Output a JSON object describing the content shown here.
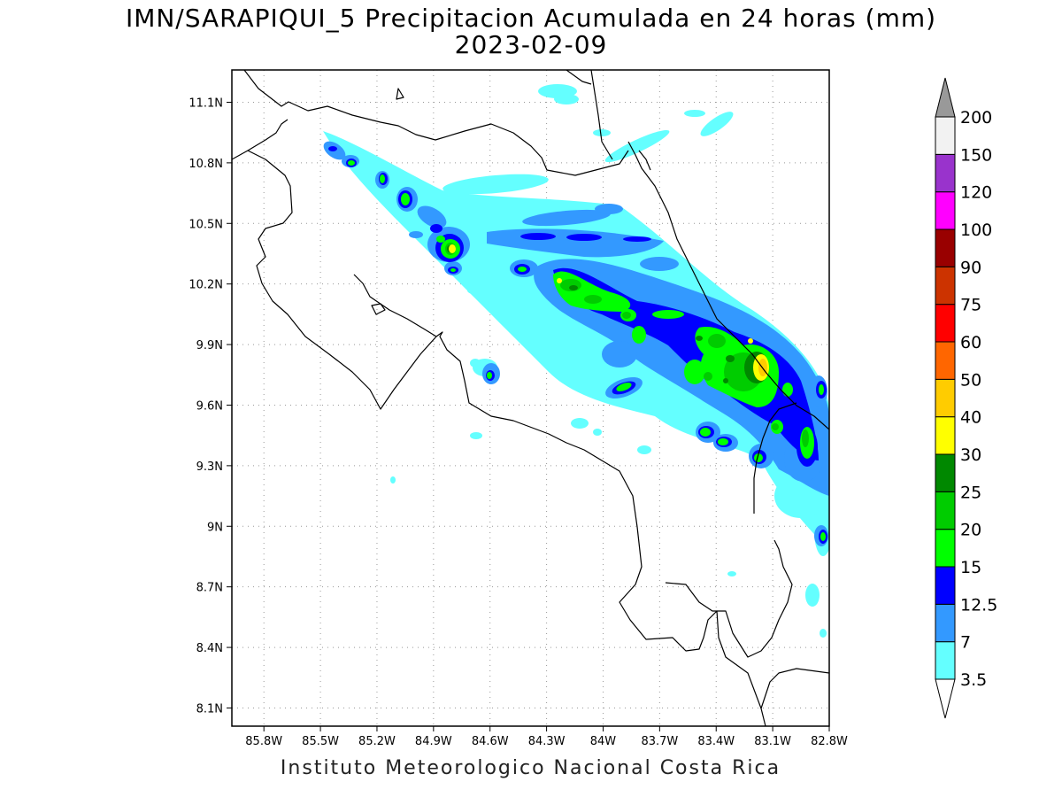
{
  "header": {
    "title": "IMN/SARAPIQUI_5 Precipitacion Acumulada en 24 horas (mm)",
    "date": "2023-02-09"
  },
  "footer": {
    "credit": "Instituto Meteorologico Nacional Costa Rica"
  },
  "map": {
    "lon_range": [
      -85.97,
      -82.8
    ],
    "lat_range": [
      8.01,
      11.26
    ],
    "lon_ticks": [
      {
        "value": -85.8,
        "label": "85.8W"
      },
      {
        "value": -85.5,
        "label": "85.5W"
      },
      {
        "value": -85.2,
        "label": "85.2W"
      },
      {
        "value": -84.9,
        "label": "84.9W"
      },
      {
        "value": -84.6,
        "label": "84.6W"
      },
      {
        "value": -84.3,
        "label": "84.3W"
      },
      {
        "value": -84.0,
        "label": "84W"
      },
      {
        "value": -83.7,
        "label": "83.7W"
      },
      {
        "value": -83.4,
        "label": "83.4W"
      },
      {
        "value": -83.1,
        "label": "83.1W"
      },
      {
        "value": -82.8,
        "label": "82.8W"
      }
    ],
    "lat_ticks": [
      {
        "value": 11.1,
        "label": "11.1N"
      },
      {
        "value": 10.8,
        "label": "10.8N"
      },
      {
        "value": 10.5,
        "label": "10.5N"
      },
      {
        "value": 10.2,
        "label": "10.2N"
      },
      {
        "value": 9.9,
        "label": "9.9N"
      },
      {
        "value": 9.6,
        "label": "9.6N"
      },
      {
        "value": 9.3,
        "label": "9.3N"
      },
      {
        "value": 9.0,
        "label": "9N"
      },
      {
        "value": 8.7,
        "label": "8.7N"
      },
      {
        "value": 8.4,
        "label": "8.4N"
      },
      {
        "value": 8.1,
        "label": "8.1N"
      }
    ],
    "grid": "dotted"
  },
  "colorbar": {
    "label_values": [
      "3.5",
      "7",
      "12.5",
      "15",
      "20",
      "25",
      "30",
      "40",
      "50",
      "60",
      "75",
      "90",
      "100",
      "120",
      "150",
      "200"
    ],
    "fill_colors": [
      "#64ffff",
      "#3399ff",
      "#0000ff",
      "#00ff00",
      "#00cc00",
      "#008800",
      "#ffff00",
      "#ffcc00",
      "#ff6600",
      "#ff0000",
      "#cc3300",
      "#990000",
      "#ff00ff",
      "#9933cc",
      "#f2f2f2"
    ],
    "over_color": "#999999",
    "under_color": "#ffffff"
  }
}
